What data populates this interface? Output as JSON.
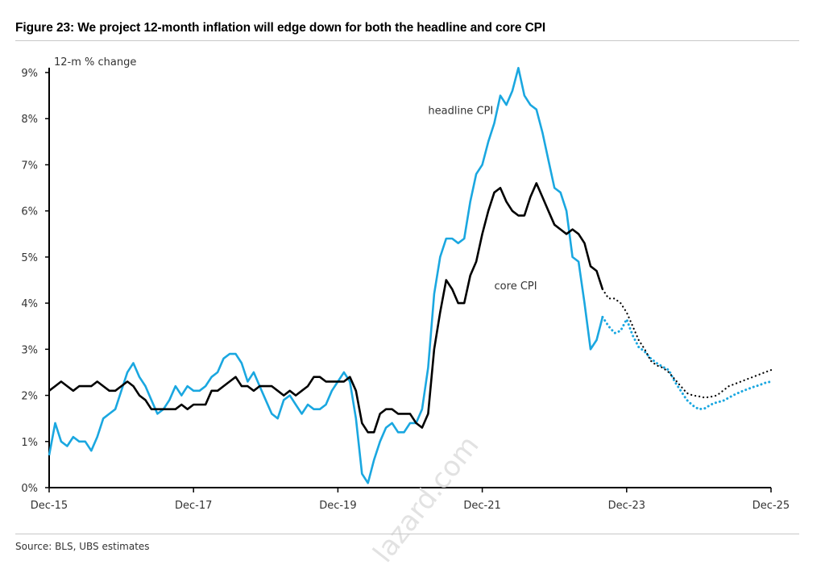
{
  "title": "Figure 23: We project 12-month inflation will edge down for both the headline and core CPI",
  "source": "Source: BLS, UBS estimates",
  "watermark": "lazard.com",
  "chart_data": {
    "type": "line",
    "title": "Figure 23: We project 12-month inflation will edge down for both the headline and core CPI",
    "ylabel": "12-m % change",
    "xlabel": "",
    "ylim": [
      0,
      9
    ],
    "xlim": [
      "2015-12",
      "2025-12"
    ],
    "y_ticks": [
      "0%",
      "1%",
      "2%",
      "3%",
      "4%",
      "5%",
      "6%",
      "7%",
      "8%",
      "9%"
    ],
    "x_ticks": [
      {
        "date": "2015-12",
        "label": "Dec-15"
      },
      {
        "date": "2017-12",
        "label": "Dec-17"
      },
      {
        "date": "2019-12",
        "label": "Dec-19"
      },
      {
        "date": "2021-12",
        "label": "Dec-21"
      },
      {
        "date": "2023-12",
        "label": "Dec-23"
      },
      {
        "date": "2025-12",
        "label": "Dec-25"
      }
    ],
    "grid": false,
    "colors": {
      "headline": "#1aa7e0",
      "core": "#000000"
    },
    "series": [
      {
        "name": "headline CPI",
        "key": "headline",
        "style": "solid",
        "start": "2015-12",
        "values": [
          0.7,
          1.4,
          1.0,
          0.9,
          1.1,
          1.0,
          1.0,
          0.8,
          1.1,
          1.5,
          1.6,
          1.7,
          2.1,
          2.5,
          2.7,
          2.4,
          2.2,
          1.9,
          1.6,
          1.7,
          1.9,
          2.2,
          2.0,
          2.2,
          2.1,
          2.1,
          2.2,
          2.4,
          2.5,
          2.8,
          2.9,
          2.9,
          2.7,
          2.3,
          2.5,
          2.2,
          1.9,
          1.6,
          1.5,
          1.9,
          2.0,
          1.8,
          1.6,
          1.8,
          1.7,
          1.7,
          1.8,
          2.1,
          2.3,
          2.5,
          2.3,
          1.5,
          0.3,
          0.1,
          0.6,
          1.0,
          1.3,
          1.4,
          1.2,
          1.2,
          1.4,
          1.4,
          1.7,
          2.6,
          4.2,
          5.0,
          5.4,
          5.4,
          5.3,
          5.4,
          6.2,
          6.8,
          7.0,
          7.5,
          7.9,
          8.5,
          8.3,
          8.6,
          9.1,
          8.5,
          8.3,
          8.2,
          7.7,
          7.1,
          6.5,
          6.4,
          6.0,
          5.0,
          4.9,
          4.0,
          3.0,
          3.2,
          3.7
        ]
      },
      {
        "name": "core CPI",
        "key": "core",
        "style": "solid",
        "start": "2015-12",
        "values": [
          2.1,
          2.2,
          2.3,
          2.2,
          2.1,
          2.2,
          2.2,
          2.2,
          2.3,
          2.2,
          2.1,
          2.1,
          2.2,
          2.3,
          2.2,
          2.0,
          1.9,
          1.7,
          1.7,
          1.7,
          1.7,
          1.7,
          1.8,
          1.7,
          1.8,
          1.8,
          1.8,
          2.1,
          2.1,
          2.2,
          2.3,
          2.4,
          2.2,
          2.2,
          2.1,
          2.2,
          2.2,
          2.2,
          2.1,
          2.0,
          2.1,
          2.0,
          2.1,
          2.2,
          2.4,
          2.4,
          2.3,
          2.3,
          2.3,
          2.3,
          2.4,
          2.1,
          1.4,
          1.2,
          1.2,
          1.6,
          1.7,
          1.7,
          1.6,
          1.6,
          1.6,
          1.4,
          1.3,
          1.6,
          3.0,
          3.8,
          4.5,
          4.3,
          4.0,
          4.0,
          4.6,
          4.9,
          5.5,
          6.0,
          6.4,
          6.5,
          6.2,
          6.0,
          5.9,
          5.9,
          6.3,
          6.6,
          6.3,
          6.0,
          5.7,
          5.6,
          5.5,
          5.6,
          5.5,
          5.3,
          4.8,
          4.7,
          4.3
        ]
      },
      {
        "name": "",
        "key": "headline",
        "style": "dotted",
        "start": "2023-08",
        "values": [
          3.7,
          3.5,
          3.35,
          3.4,
          3.65,
          3.3,
          3.05,
          2.95,
          2.8,
          2.7,
          2.62,
          2.55,
          2.3,
          2.1,
          1.9,
          1.78,
          1.7,
          1.72,
          1.8,
          1.85,
          1.88,
          1.95,
          2.02,
          2.08,
          2.13,
          2.18,
          2.22,
          2.27,
          2.3
        ]
      },
      {
        "name": "",
        "key": "core",
        "style": "dotted",
        "start": "2023-08",
        "values": [
          4.3,
          4.1,
          4.1,
          4.0,
          3.8,
          3.5,
          3.2,
          3.0,
          2.75,
          2.65,
          2.6,
          2.5,
          2.35,
          2.2,
          2.05,
          2.0,
          1.98,
          1.95,
          1.97,
          2.0,
          2.1,
          2.2,
          2.25,
          2.3,
          2.35,
          2.4,
          2.45,
          2.5,
          2.55
        ]
      }
    ],
    "annotations": [
      {
        "text": "headline CPI",
        "date": "2021-03",
        "y": 8.1
      },
      {
        "text": "core CPI",
        "date": "2022-02",
        "y": 4.3
      }
    ]
  }
}
